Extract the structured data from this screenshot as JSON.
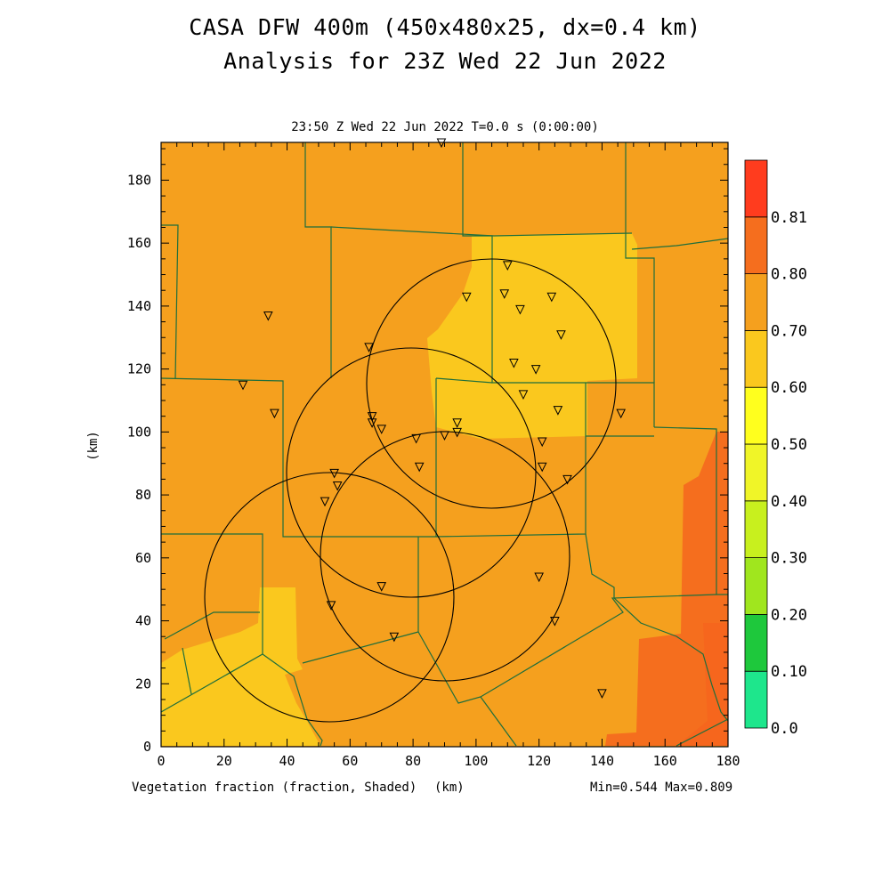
{
  "title_line1": "CASA DFW 400m (450x480x25, dx=0.4 km)",
  "title_line2": "Analysis for 23Z Wed 22 Jun 2022",
  "subtitle": "23:50 Z Wed 22 Jun 2022   T=0.0 s (0:00:00)",
  "variable_label": "Vegetation fraction (fraction, Shaded)",
  "x_unit_label": "(km)",
  "y_unit_label": "(km)",
  "min_max": "Min=0.544 Max=0.809",
  "x_ticks": [
    "0",
    "20",
    "40",
    "60",
    "80",
    "100",
    "120",
    "140",
    "160",
    "180"
  ],
  "y_ticks": [
    "0",
    "20",
    "40",
    "60",
    "80",
    "100",
    "120",
    "140",
    "160",
    "180"
  ],
  "colorbar": {
    "levels": [
      "0.0",
      "0.10",
      "0.20",
      "0.30",
      "0.40",
      "0.50",
      "0.60",
      "0.70",
      "0.80",
      "0.81"
    ],
    "colors": [
      "#1ee68c",
      "#1ec83c",
      "#a0e61e",
      "#c8f01e",
      "#f0f528",
      "#ffff1e",
      "#fac81e",
      "#f5a01e",
      "#f56e1e",
      "#ff3c1e"
    ]
  },
  "map_colors": {
    "base": "#f5a01e",
    "lighter": "#fac81e",
    "darker": "#f56e1e",
    "county_lines": "#1e6e3c",
    "radar_rings": "#000000"
  },
  "icons": [
    "station-triangle-icon"
  ]
}
